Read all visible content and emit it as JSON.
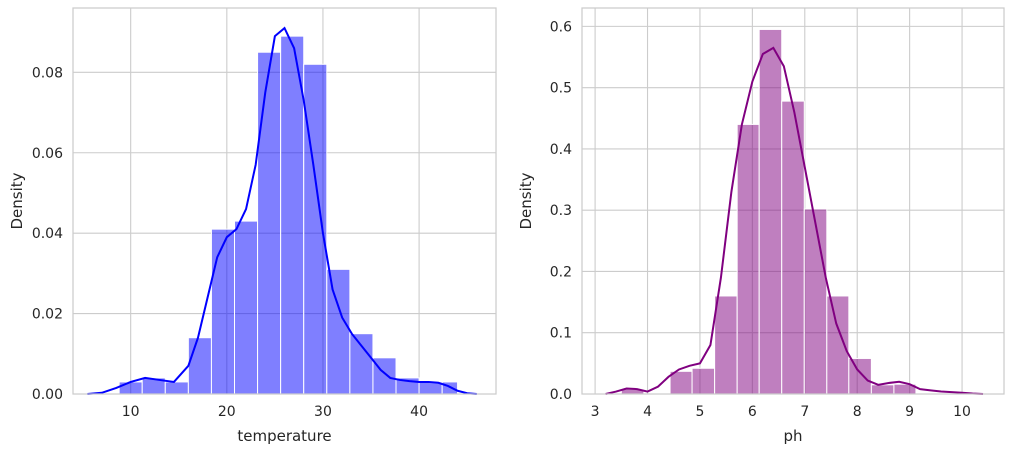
{
  "chart_data": [
    {
      "type": "histogram",
      "xlabel": "temperature",
      "ylabel": "Density",
      "xlim": [
        4.0,
        48.0
      ],
      "ylim": [
        0,
        0.096
      ],
      "xticks": [
        10,
        20,
        30,
        40
      ],
      "yticks": [
        0.0,
        0.02,
        0.04,
        0.06,
        0.08
      ],
      "ytick_labels": [
        "0.00",
        "0.02",
        "0.04",
        "0.06",
        "0.08"
      ],
      "grid": true,
      "bar_color": "#0000ff",
      "line_color": "#0000ff",
      "bins": [
        {
          "start": 8.8,
          "end": 11.2,
          "density": 0.003
        },
        {
          "start": 11.2,
          "end": 13.6,
          "density": 0.004
        },
        {
          "start": 13.6,
          "end": 16.0,
          "density": 0.003
        },
        {
          "start": 16.0,
          "end": 18.4,
          "density": 0.014
        },
        {
          "start": 18.4,
          "end": 20.8,
          "density": 0.041
        },
        {
          "start": 20.8,
          "end": 23.2,
          "density": 0.043
        },
        {
          "start": 23.2,
          "end": 25.6,
          "density": 0.085
        },
        {
          "start": 25.6,
          "end": 28.0,
          "density": 0.089
        },
        {
          "start": 28.0,
          "end": 30.4,
          "density": 0.082
        },
        {
          "start": 30.4,
          "end": 32.8,
          "density": 0.031
        },
        {
          "start": 32.8,
          "end": 35.2,
          "density": 0.015
        },
        {
          "start": 35.2,
          "end": 37.6,
          "density": 0.009
        },
        {
          "start": 37.6,
          "end": 40.0,
          "density": 0.004
        },
        {
          "start": 40.0,
          "end": 42.4,
          "density": 0.003
        },
        {
          "start": 42.4,
          "end": 44.0,
          "density": 0.003
        }
      ],
      "kde": {
        "x": [
          5.5,
          7,
          8.5,
          10,
          11.5,
          13,
          14.5,
          16,
          17,
          18,
          19,
          20,
          21,
          22,
          23,
          24,
          25,
          26,
          27,
          28,
          29,
          30,
          31,
          32,
          33,
          34,
          35,
          36,
          37,
          38,
          39,
          40,
          41,
          42,
          43,
          44,
          45,
          46
        ],
        "y": [
          0.0,
          0.0003,
          0.0015,
          0.003,
          0.004,
          0.0035,
          0.003,
          0.007,
          0.014,
          0.024,
          0.034,
          0.039,
          0.041,
          0.046,
          0.057,
          0.075,
          0.089,
          0.091,
          0.086,
          0.073,
          0.057,
          0.04,
          0.026,
          0.019,
          0.015,
          0.012,
          0.009,
          0.006,
          0.004,
          0.0035,
          0.0032,
          0.003,
          0.003,
          0.0028,
          0.002,
          0.0008,
          0.0002,
          0.0
        ]
      }
    },
    {
      "type": "histogram",
      "xlabel": "ph",
      "ylabel": "Density",
      "xlim": [
        2.75,
        10.8
      ],
      "ylim": [
        0,
        0.63
      ],
      "xticks": [
        3,
        4,
        5,
        6,
        7,
        8,
        9,
        10
      ],
      "yticks": [
        0.0,
        0.1,
        0.2,
        0.3,
        0.4,
        0.5,
        0.6
      ],
      "ytick_labels": [
        "0.0",
        "0.1",
        "0.2",
        "0.3",
        "0.4",
        "0.5",
        "0.6"
      ],
      "grid": true,
      "bar_color": "#800080",
      "line_color": "#800080",
      "bins": [
        {
          "start": 3.5,
          "end": 3.93,
          "density": 0.008
        },
        {
          "start": 4.43,
          "end": 4.85,
          "density": 0.037
        },
        {
          "start": 4.85,
          "end": 5.28,
          "density": 0.042
        },
        {
          "start": 5.28,
          "end": 5.71,
          "density": 0.16
        },
        {
          "start": 5.71,
          "end": 6.13,
          "density": 0.44
        },
        {
          "start": 6.13,
          "end": 6.56,
          "density": 0.595
        },
        {
          "start": 6.56,
          "end": 6.99,
          "density": 0.478
        },
        {
          "start": 6.99,
          "end": 7.42,
          "density": 0.302
        },
        {
          "start": 7.42,
          "end": 7.84,
          "density": 0.16
        },
        {
          "start": 7.84,
          "end": 8.27,
          "density": 0.058
        },
        {
          "start": 8.27,
          "end": 8.7,
          "density": 0.015
        },
        {
          "start": 8.7,
          "end": 9.12,
          "density": 0.016
        }
      ],
      "kde": {
        "x": [
          3.2,
          3.4,
          3.6,
          3.8,
          4.0,
          4.2,
          4.4,
          4.6,
          4.8,
          5.0,
          5.2,
          5.4,
          5.6,
          5.8,
          6.0,
          6.2,
          6.4,
          6.6,
          6.8,
          7.0,
          7.2,
          7.4,
          7.6,
          7.8,
          8.0,
          8.2,
          8.4,
          8.6,
          8.8,
          9.0,
          9.2,
          9.4,
          9.6,
          9.8,
          10.0,
          10.2,
          10.4
        ],
        "y": [
          0.0,
          0.004,
          0.009,
          0.008,
          0.004,
          0.012,
          0.028,
          0.04,
          0.046,
          0.05,
          0.08,
          0.19,
          0.33,
          0.44,
          0.51,
          0.555,
          0.565,
          0.535,
          0.46,
          0.37,
          0.28,
          0.19,
          0.115,
          0.07,
          0.04,
          0.022,
          0.015,
          0.018,
          0.02,
          0.016,
          0.008,
          0.006,
          0.004,
          0.003,
          0.002,
          0.0008,
          0.0
        ]
      }
    }
  ]
}
